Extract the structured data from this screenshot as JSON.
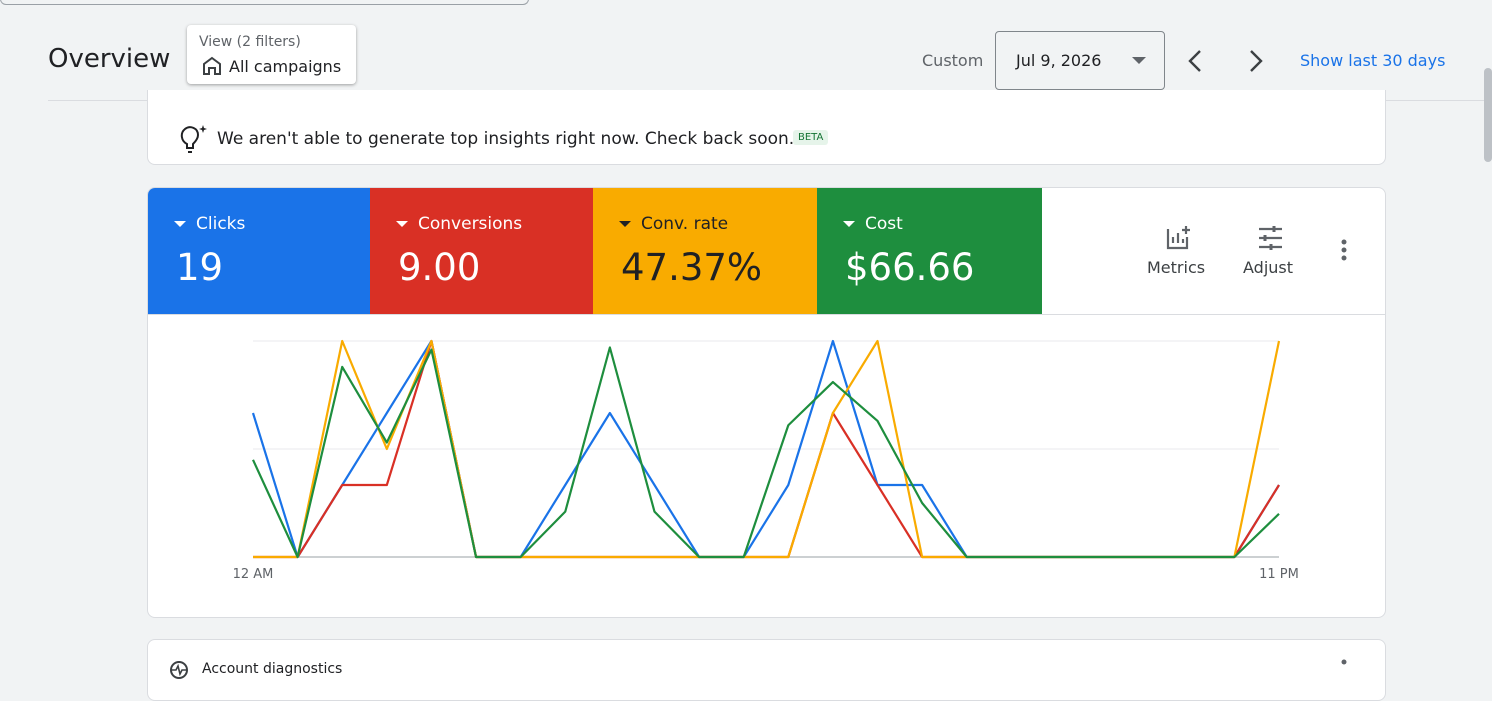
{
  "header": {
    "title": "Overview",
    "filter_label": "View (2 filters)",
    "filter_value": "All campaigns",
    "range_label": "Custom",
    "date": "Jul 9, 2026",
    "show_last": "Show last 30 days"
  },
  "insight": {
    "text": "We aren't able to generate top insights right now. Check back soon.",
    "badge": "BETA"
  },
  "buttons": {
    "metrics": "Metrics",
    "adjust": "Adjust"
  },
  "diagnostics": {
    "title": "Account diagnostics"
  },
  "chart_data": {
    "type": "line",
    "categories": [
      "12 AM",
      null,
      null,
      null,
      null,
      null,
      null,
      null,
      null,
      null,
      null,
      null,
      null,
      null,
      null,
      null,
      null,
      null,
      null,
      null,
      null,
      null,
      null,
      "11 PM"
    ],
    "series": [
      {
        "name": "Clicks",
        "total": "19",
        "color": "#1a73e8",
        "ylim": [
          0,
          3
        ],
        "values": [
          2,
          0,
          1,
          2,
          3,
          0,
          0,
          1,
          2,
          1,
          0,
          0,
          1,
          3,
          1,
          1,
          0,
          0,
          0,
          0,
          0,
          0,
          0,
          1
        ]
      },
      {
        "name": "Conversions",
        "total": "9.00",
        "color": "#d93025",
        "ylim": [
          0,
          3
        ],
        "values": [
          0,
          0,
          1,
          1,
          3,
          0,
          0,
          0,
          0,
          0,
          0,
          0,
          0,
          2,
          1,
          0,
          0,
          0,
          0,
          0,
          0,
          0,
          0,
          1
        ]
      },
      {
        "name": "Conv. rate",
        "total": "47.37%",
        "color": "#f9ab00",
        "ylim": [
          0,
          100
        ],
        "values": [
          0,
          0,
          100,
          50,
          100,
          0,
          0,
          0,
          0,
          0,
          0,
          0,
          0,
          66.67,
          100,
          0,
          0,
          0,
          0,
          0,
          0,
          0,
          0,
          100
        ]
      },
      {
        "name": "Cost",
        "total": "$66.66",
        "color": "#1e8e3e",
        "ylim": [
          0,
          10
        ],
        "values": [
          4.5,
          0,
          8.8,
          5.3,
          9.6,
          0,
          0,
          2.1,
          9.7,
          2.1,
          0,
          0,
          6.1,
          8.1,
          6.3,
          2.5,
          0,
          0,
          0,
          0,
          0,
          0,
          0,
          2.0
        ]
      }
    ]
  }
}
